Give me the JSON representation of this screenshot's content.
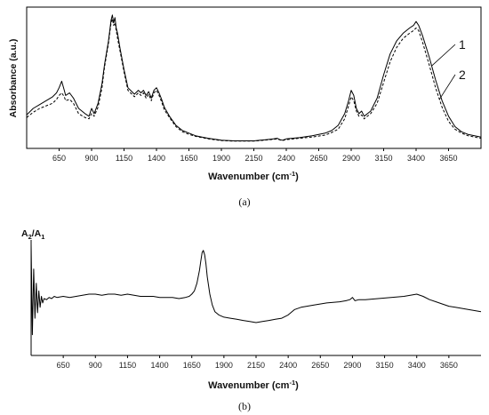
{
  "chart_data": [
    {
      "panel": "(a)",
      "type": "line",
      "xlabel": "Wavenumber (cm",
      "xlabel_sup": "-1",
      "xlabel_tail": ")",
      "ylabel": "Absorbance (a.u.)",
      "xlim": [
        400,
        3900
      ],
      "ylim": [
        0,
        1
      ],
      "x_ticks": [
        650,
        900,
        1150,
        1400,
        1650,
        1900,
        2150,
        2400,
        2650,
        2900,
        3150,
        3400,
        3650
      ],
      "y_ticks": [],
      "grid": false,
      "legend": [
        {
          "label": "1",
          "series": 0
        },
        {
          "label": "2",
          "series": 1
        }
      ],
      "series": [
        {
          "style": "solid",
          "x": [
            400,
            450,
            500,
            550,
            600,
            630,
            650,
            670,
            690,
            700,
            730,
            760,
            800,
            850,
            880,
            900,
            920,
            950,
            980,
            1000,
            1030,
            1050,
            1060,
            1070,
            1080,
            1090,
            1100,
            1120,
            1150,
            1180,
            1200,
            1230,
            1260,
            1280,
            1300,
            1320,
            1340,
            1360,
            1380,
            1400,
            1420,
            1440,
            1460,
            1500,
            1550,
            1600,
            1650,
            1700,
            1750,
            1800,
            1900,
            2000,
            2100,
            2150,
            2200,
            2250,
            2300,
            2330,
            2350,
            2370,
            2400,
            2500,
            2600,
            2700,
            2750,
            2800,
            2850,
            2880,
            2900,
            2920,
            2940,
            2960,
            2980,
            3000,
            3050,
            3100,
            3150,
            3200,
            3250,
            3300,
            3350,
            3380,
            3400,
            3420,
            3450,
            3500,
            3550,
            3600,
            3650,
            3700,
            3750,
            3800,
            3850,
            3900
          ],
          "y": [
            0.21,
            0.26,
            0.29,
            0.32,
            0.35,
            0.38,
            0.42,
            0.47,
            0.4,
            0.36,
            0.38,
            0.34,
            0.26,
            0.22,
            0.2,
            0.26,
            0.22,
            0.3,
            0.45,
            0.6,
            0.78,
            0.94,
            0.98,
            0.92,
            0.96,
            0.88,
            0.84,
            0.72,
            0.56,
            0.42,
            0.4,
            0.37,
            0.4,
            0.38,
            0.4,
            0.36,
            0.39,
            0.34,
            0.4,
            0.42,
            0.38,
            0.33,
            0.27,
            0.2,
            0.13,
            0.09,
            0.07,
            0.05,
            0.04,
            0.03,
            0.015,
            0.01,
            0.01,
            0.01,
            0.015,
            0.02,
            0.025,
            0.03,
            0.02,
            0.015,
            0.025,
            0.035,
            0.05,
            0.07,
            0.09,
            0.13,
            0.22,
            0.32,
            0.4,
            0.36,
            0.26,
            0.22,
            0.24,
            0.2,
            0.24,
            0.34,
            0.52,
            0.68,
            0.78,
            0.84,
            0.88,
            0.9,
            0.93,
            0.9,
            0.82,
            0.66,
            0.48,
            0.32,
            0.2,
            0.12,
            0.08,
            0.06,
            0.05,
            0.04
          ]
        },
        {
          "style": "dashed",
          "x": [
            400,
            450,
            500,
            550,
            600,
            630,
            650,
            670,
            690,
            700,
            730,
            760,
            800,
            850,
            880,
            900,
            920,
            950,
            980,
            1000,
            1030,
            1050,
            1060,
            1070,
            1080,
            1090,
            1100,
            1120,
            1150,
            1180,
            1200,
            1230,
            1260,
            1280,
            1300,
            1320,
            1340,
            1360,
            1380,
            1400,
            1420,
            1440,
            1460,
            1500,
            1550,
            1600,
            1650,
            1700,
            1750,
            1800,
            1900,
            2000,
            2100,
            2150,
            2200,
            2250,
            2300,
            2330,
            2350,
            2370,
            2400,
            2500,
            2600,
            2700,
            2750,
            2800,
            2850,
            2880,
            2900,
            2920,
            2940,
            2960,
            2980,
            3000,
            3050,
            3100,
            3150,
            3200,
            3250,
            3300,
            3350,
            3380,
            3400,
            3420,
            3450,
            3500,
            3550,
            3600,
            3650,
            3700,
            3750,
            3800,
            3850,
            3900
          ],
          "y": [
            0.19,
            0.23,
            0.26,
            0.28,
            0.3,
            0.33,
            0.36,
            0.38,
            0.35,
            0.32,
            0.33,
            0.3,
            0.22,
            0.19,
            0.18,
            0.22,
            0.2,
            0.27,
            0.42,
            0.58,
            0.76,
            0.92,
            0.95,
            0.9,
            0.92,
            0.86,
            0.8,
            0.7,
            0.54,
            0.4,
            0.38,
            0.35,
            0.38,
            0.36,
            0.38,
            0.34,
            0.37,
            0.32,
            0.38,
            0.4,
            0.36,
            0.31,
            0.25,
            0.19,
            0.12,
            0.08,
            0.06,
            0.045,
            0.035,
            0.025,
            0.012,
            0.008,
            0.008,
            0.008,
            0.012,
            0.017,
            0.022,
            0.025,
            0.018,
            0.013,
            0.02,
            0.03,
            0.04,
            0.055,
            0.075,
            0.1,
            0.18,
            0.28,
            0.35,
            0.32,
            0.24,
            0.2,
            0.21,
            0.18,
            0.22,
            0.3,
            0.46,
            0.62,
            0.73,
            0.8,
            0.84,
            0.86,
            0.88,
            0.86,
            0.77,
            0.6,
            0.42,
            0.27,
            0.16,
            0.1,
            0.07,
            0.05,
            0.04,
            0.03
          ]
        }
      ]
    },
    {
      "panel": "(b)",
      "type": "line",
      "xlabel": "Wavenumber (cm",
      "xlabel_sup": "-1",
      "xlabel_tail": ")",
      "ylabel_main": "A",
      "ylabel_sub1": "2",
      "ylabel_mid": "/A",
      "ylabel_sub2": "1",
      "xlim": [
        400,
        3900
      ],
      "ylim": [
        0,
        1
      ],
      "x_ticks": [
        650,
        900,
        1150,
        1400,
        1650,
        1900,
        2150,
        2400,
        2650,
        2900,
        3150,
        3400,
        3650
      ],
      "y_ticks": [],
      "grid": false,
      "series": [
        {
          "style": "solid",
          "x": [
            400,
            410,
            420,
            430,
            440,
            450,
            460,
            470,
            480,
            490,
            500,
            520,
            540,
            560,
            580,
            600,
            650,
            700,
            750,
            800,
            850,
            880,
            900,
            950,
            1000,
            1050,
            1100,
            1150,
            1200,
            1250,
            1300,
            1350,
            1400,
            1450,
            1500,
            1550,
            1600,
            1630,
            1650,
            1670,
            1690,
            1710,
            1720,
            1730,
            1740,
            1750,
            1760,
            1770,
            1790,
            1810,
            1830,
            1860,
            1900,
            1950,
            2000,
            2050,
            2100,
            2150,
            2200,
            2250,
            2300,
            2350,
            2400,
            2450,
            2500,
            2600,
            2700,
            2800,
            2850,
            2880,
            2900,
            2920,
            2950,
            3000,
            3100,
            3200,
            3300,
            3350,
            3400,
            3450,
            3500,
            3550,
            3600,
            3650,
            3700,
            3750,
            3800,
            3850,
            3900
          ],
          "y": [
            0.98,
            0.15,
            0.75,
            0.3,
            0.62,
            0.35,
            0.55,
            0.4,
            0.5,
            0.44,
            0.48,
            0.47,
            0.49,
            0.48,
            0.5,
            0.49,
            0.5,
            0.49,
            0.5,
            0.51,
            0.52,
            0.52,
            0.52,
            0.51,
            0.52,
            0.52,
            0.51,
            0.52,
            0.51,
            0.5,
            0.5,
            0.5,
            0.49,
            0.49,
            0.49,
            0.48,
            0.49,
            0.5,
            0.52,
            0.55,
            0.62,
            0.74,
            0.82,
            0.9,
            0.92,
            0.88,
            0.8,
            0.68,
            0.52,
            0.42,
            0.36,
            0.33,
            0.31,
            0.3,
            0.29,
            0.28,
            0.27,
            0.26,
            0.27,
            0.28,
            0.29,
            0.3,
            0.33,
            0.38,
            0.4,
            0.42,
            0.44,
            0.45,
            0.46,
            0.47,
            0.49,
            0.46,
            0.47,
            0.47,
            0.48,
            0.49,
            0.5,
            0.51,
            0.52,
            0.5,
            0.47,
            0.45,
            0.43,
            0.41,
            0.4,
            0.39,
            0.38,
            0.37,
            0.36
          ]
        }
      ]
    }
  ],
  "captions": [
    "(a)",
    "(b)"
  ]
}
